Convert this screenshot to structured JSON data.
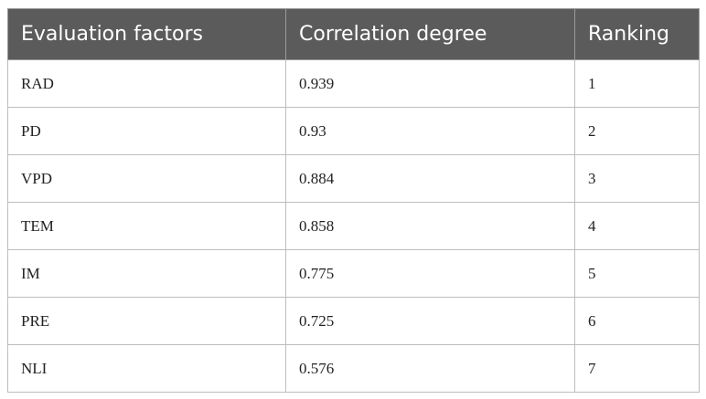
{
  "table": {
    "header": [
      "Evaluation factors",
      "Correlation degree",
      "Ranking"
    ],
    "rows": [
      [
        "RAD",
        "0.939",
        "1"
      ],
      [
        "PD",
        "0.93",
        "2"
      ],
      [
        "VPD",
        "0.884",
        "3"
      ],
      [
        "TEM",
        "0.858",
        "4"
      ],
      [
        "IM",
        "0.775",
        "5"
      ],
      [
        "PRE",
        "0.725",
        "6"
      ],
      [
        "NLI",
        "0.576",
        "7"
      ]
    ]
  }
}
